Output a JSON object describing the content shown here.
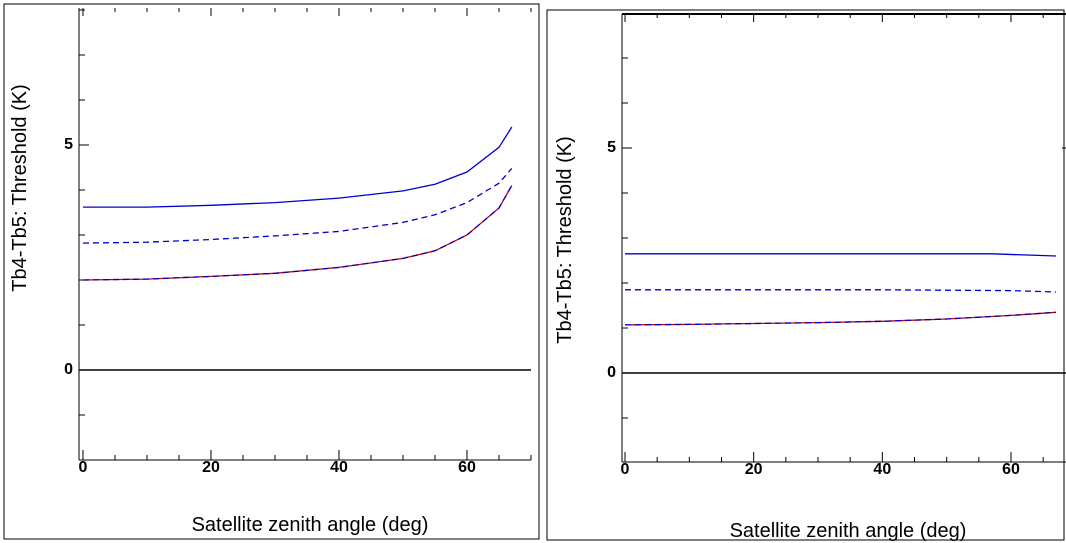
{
  "chart_data": [
    {
      "type": "line",
      "xlabel": "Satellite zenith angle (deg)",
      "ylabel": "Tb4-Tb5: Threshold (K)",
      "xlim": [
        0,
        70
      ],
      "ylim": [
        -2,
        8
      ],
      "xticks": [
        "0",
        "20",
        "40",
        "60"
      ],
      "yticks": [
        "0",
        "5"
      ],
      "zero_line": true,
      "series": [
        {
          "color": "#0000cc",
          "dash": "solid",
          "x": [
            0,
            10,
            20,
            30,
            40,
            50,
            55,
            60,
            65,
            67
          ],
          "y": [
            3.62,
            3.62,
            3.66,
            3.72,
            3.82,
            3.98,
            4.13,
            4.4,
            4.95,
            5.4
          ]
        },
        {
          "color": "#0000cc",
          "dash": "dashed",
          "x": [
            0,
            10,
            20,
            30,
            40,
            50,
            55,
            60,
            65,
            67
          ],
          "y": [
            2.82,
            2.84,
            2.9,
            2.98,
            3.08,
            3.28,
            3.45,
            3.72,
            4.15,
            4.48
          ]
        },
        {
          "color": "#cc0000",
          "dash": "solid",
          "x": [
            0,
            10,
            20,
            30,
            40,
            50,
            55,
            60,
            65,
            67
          ],
          "y": [
            2.0,
            2.02,
            2.08,
            2.15,
            2.28,
            2.48,
            2.65,
            3.0,
            3.6,
            4.1
          ]
        },
        {
          "color": "#0000cc",
          "dash": "dashed",
          "x": [
            0,
            10,
            20,
            30,
            40,
            50,
            55,
            60,
            65,
            67
          ],
          "y": [
            2.0,
            2.02,
            2.08,
            2.15,
            2.28,
            2.48,
            2.65,
            3.0,
            3.6,
            4.1
          ]
        }
      ]
    },
    {
      "type": "line",
      "xlabel": "Satellite zenith angle (deg)",
      "ylabel": "Tb4-Tb5: Threshold (K)",
      "xlim": [
        0,
        70
      ],
      "ylim": [
        -2,
        8
      ],
      "xticks": [
        "0",
        "20",
        "40",
        "60"
      ],
      "yticks": [
        "0",
        "5"
      ],
      "zero_line": true,
      "series": [
        {
          "color": "#0000cc",
          "dash": "solid",
          "x": [
            0,
            20,
            40,
            57,
            67
          ],
          "y": [
            2.65,
            2.65,
            2.65,
            2.65,
            2.6
          ]
        },
        {
          "color": "#0000cc",
          "dash": "dashed",
          "x": [
            0,
            20,
            40,
            60,
            67
          ],
          "y": [
            1.85,
            1.85,
            1.85,
            1.83,
            1.8
          ]
        },
        {
          "color": "#cc0000",
          "dash": "solid",
          "x": [
            0,
            10,
            20,
            30,
            40,
            50,
            60,
            67
          ],
          "y": [
            1.07,
            1.08,
            1.1,
            1.12,
            1.15,
            1.2,
            1.28,
            1.35
          ]
        },
        {
          "color": "#0000cc",
          "dash": "dashed",
          "x": [
            0,
            10,
            20,
            30,
            40,
            50,
            60,
            67
          ],
          "y": [
            1.07,
            1.08,
            1.1,
            1.12,
            1.15,
            1.2,
            1.28,
            1.35
          ]
        }
      ]
    }
  ]
}
